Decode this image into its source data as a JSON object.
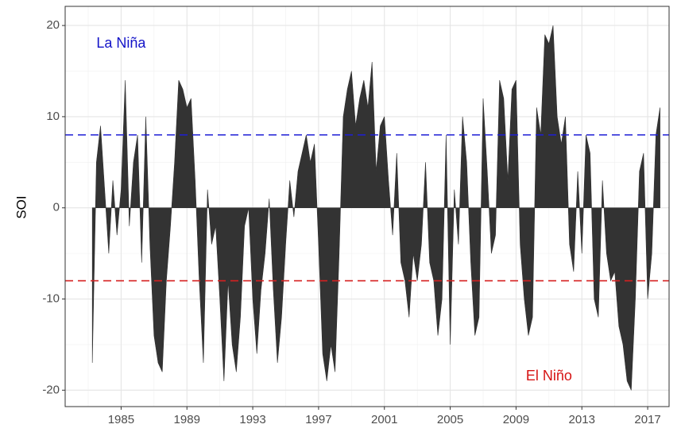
{
  "chart_data": {
    "type": "area",
    "ylabel": "SOI",
    "x": [
      1983.25,
      1983.5,
      1983.75,
      1984,
      1984.25,
      1984.5,
      1984.75,
      1985,
      1985.25,
      1985.5,
      1985.75,
      1986,
      1986.25,
      1986.5,
      1986.75,
      1987,
      1987.25,
      1987.5,
      1987.75,
      1988,
      1988.25,
      1988.5,
      1988.75,
      1989,
      1989.25,
      1989.5,
      1989.75,
      1990,
      1990.25,
      1990.5,
      1990.75,
      1991,
      1991.25,
      1991.5,
      1991.75,
      1992,
      1992.25,
      1992.5,
      1992.75,
      1993,
      1993.25,
      1993.5,
      1993.75,
      1994,
      1994.25,
      1994.5,
      1994.75,
      1995,
      1995.25,
      1995.5,
      1995.75,
      1996,
      1996.25,
      1996.5,
      1996.75,
      1997,
      1997.25,
      1997.5,
      1997.75,
      1998,
      1998.25,
      1998.5,
      1998.75,
      1999,
      1999.25,
      1999.5,
      1999.75,
      2000,
      2000.25,
      2000.5,
      2000.75,
      2001,
      2001.25,
      2001.5,
      2001.75,
      2002,
      2002.25,
      2002.5,
      2002.75,
      2003,
      2003.25,
      2003.5,
      2003.75,
      2004,
      2004.25,
      2004.5,
      2004.75,
      2005,
      2005.25,
      2005.5,
      2005.75,
      2006,
      2006.25,
      2006.5,
      2006.75,
      2007,
      2007.25,
      2007.5,
      2007.75,
      2008,
      2008.25,
      2008.5,
      2008.75,
      2009,
      2009.25,
      2009.5,
      2009.75,
      2010,
      2010.25,
      2010.5,
      2010.75,
      2011,
      2011.25,
      2011.5,
      2011.75,
      2012,
      2012.25,
      2012.5,
      2012.75,
      2013,
      2013.25,
      2013.5,
      2013.75,
      2014,
      2014.25,
      2014.5,
      2014.75,
      2015,
      2015.25,
      2015.5,
      2015.75,
      2016,
      2016.25,
      2016.5,
      2016.75,
      2017,
      2017.25,
      2017.5,
      2017.75
    ],
    "series": [
      {
        "name": "SOI",
        "color": "#333333",
        "values": [
          -17,
          5,
          9,
          2,
          -5,
          3,
          -3,
          2,
          14,
          -2,
          5,
          8,
          -6,
          10,
          -4,
          -14,
          -17,
          -18,
          -8,
          -2,
          5,
          14,
          13,
          11,
          12,
          3,
          -8,
          -17,
          2,
          -4,
          -2,
          -10,
          -19,
          -8,
          -15,
          -18,
          -12,
          -2,
          0,
          -10,
          -16,
          -9,
          -5,
          1,
          -9,
          -17,
          -12,
          -4,
          3,
          -1,
          4,
          6,
          8,
          5,
          7,
          -4,
          -16,
          -19,
          -15,
          -18,
          -5,
          10,
          13,
          15,
          9,
          12,
          14,
          11,
          16,
          4,
          9,
          10,
          3,
          -3,
          6,
          -6,
          -8,
          -12,
          -5,
          -8,
          -4,
          5,
          -6,
          -8,
          -14,
          -10,
          8,
          -15,
          2,
          -4,
          10,
          5,
          -6,
          -14,
          -12,
          12,
          4,
          -5,
          -3,
          14,
          12,
          3,
          13,
          14,
          -4,
          -10,
          -14,
          -12,
          11,
          8,
          19,
          18,
          20,
          10,
          7,
          10,
          -4,
          -7,
          4,
          -5,
          8,
          6,
          -10,
          -12,
          3,
          -5,
          -8,
          -7,
          -13,
          -15,
          -19,
          -20,
          -10,
          4,
          6,
          -10,
          -5,
          8,
          11
        ]
      }
    ],
    "xlim": [
      1981.6,
      2018.3
    ],
    "ylim": [
      -21.8,
      22.1
    ],
    "xticks": [
      1985,
      1989,
      1993,
      1997,
      2001,
      2005,
      2009,
      2013,
      2017
    ],
    "yticks": [
      -20,
      -10,
      0,
      10,
      20
    ],
    "xminorticks": [
      1983,
      1987,
      1991,
      1995,
      1999,
      2003,
      2007,
      2011,
      2015
    ],
    "yminorticks": [
      -15,
      -5,
      5,
      15
    ],
    "grid": true,
    "reference_lines": [
      {
        "value": 8,
        "color": "#1f1fd6"
      },
      {
        "value": -8,
        "color": "#d62020"
      }
    ],
    "annotations": [
      {
        "text": "La Niña",
        "x": 1985,
        "y": 18,
        "color": "#1414c8"
      },
      {
        "text": "El Niño",
        "x": 2011,
        "y": -18.5,
        "color": "#d61414"
      }
    ]
  }
}
